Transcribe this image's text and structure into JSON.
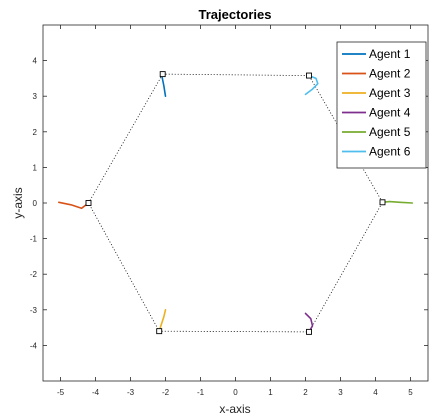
{
  "chart_data": {
    "type": "line",
    "title": "Trajectories",
    "xlabel": "x-axis",
    "ylabel": "y-axis",
    "xlim": [
      -5.5,
      5.5
    ],
    "ylim": [
      -5,
      5
    ],
    "xticks": [
      "-5",
      "-4",
      "-3",
      "-2",
      "-1",
      "0",
      "1",
      "2",
      "3",
      "4",
      "5"
    ],
    "yticks": [
      "-4",
      "-3",
      "-2",
      "-1",
      "0",
      "1",
      "2",
      "3",
      "4"
    ],
    "grid": false,
    "legend_location": "top-right",
    "series": [
      {
        "name": "Agent 1",
        "color": "#0072BD",
        "x": [
          -2.0,
          -2.05,
          -2.1,
          -2.08
        ],
        "y": [
          3.0,
          3.3,
          3.55,
          3.62
        ]
      },
      {
        "name": "Agent 2",
        "color": "#D95319",
        "x": [
          -5.05,
          -4.7,
          -4.4,
          -4.2
        ],
        "y": [
          0.02,
          -0.05,
          -0.15,
          0.0
        ]
      },
      {
        "name": "Agent 3",
        "color": "#EDB120",
        "x": [
          -2.0,
          -2.05,
          -2.15,
          -2.18
        ],
        "y": [
          -3.0,
          -3.2,
          -3.5,
          -3.6
        ]
      },
      {
        "name": "Agent 4",
        "color": "#7E2F8E",
        "x": [
          2.0,
          2.15,
          2.2,
          2.1
        ],
        "y": [
          -3.1,
          -3.25,
          -3.45,
          -3.62
        ]
      },
      {
        "name": "Agent 5",
        "color": "#77AC30",
        "x": [
          5.05,
          4.7,
          4.4,
          4.2
        ],
        "y": [
          0.0,
          0.02,
          0.04,
          0.02
        ]
      },
      {
        "name": "Agent 6",
        "color": "#4DBEEE",
        "x": [
          2.0,
          2.2,
          2.35,
          2.3,
          2.1
        ],
        "y": [
          3.05,
          3.2,
          3.35,
          3.5,
          3.58
        ]
      }
    ],
    "formation": {
      "style": "dotted",
      "color": "#000000",
      "vertices_x": [
        -2.08,
        2.1,
        4.2,
        2.1,
        -2.18,
        -4.2
      ],
      "vertices_y": [
        3.62,
        3.58,
        0.02,
        -3.62,
        -3.6,
        0.0
      ]
    }
  }
}
